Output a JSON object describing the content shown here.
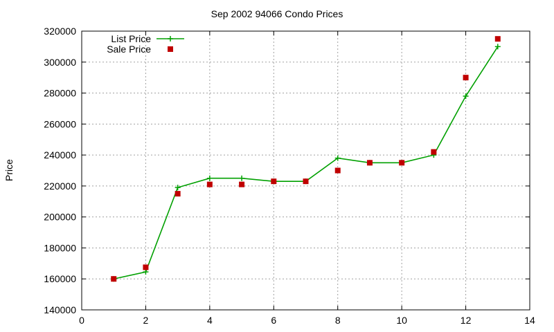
{
  "chart_data": {
    "type": "line",
    "title": "Sep 2002 94066 Condo Prices",
    "xlabel": "",
    "ylabel": "Price",
    "xlim": [
      0,
      14
    ],
    "ylim": [
      140000,
      320000
    ],
    "xticks": [
      0,
      2,
      4,
      6,
      8,
      10,
      12,
      14
    ],
    "yticks": [
      140000,
      160000,
      180000,
      200000,
      220000,
      240000,
      260000,
      280000,
      300000,
      320000
    ],
    "grid": true,
    "legend_position": "top-left",
    "series": [
      {
        "name": "List Price",
        "style": "line-plus",
        "color": "#00a000",
        "x": [
          1,
          2,
          3,
          4,
          5,
          6,
          7,
          8,
          9,
          10,
          11,
          12,
          13
        ],
        "y": [
          160000,
          164500,
          219000,
          225000,
          225000,
          223000,
          223000,
          238000,
          235000,
          235000,
          240000,
          278000,
          310000
        ]
      },
      {
        "name": "Sale Price",
        "style": "square-points",
        "color": "#c00000",
        "x": [
          1,
          2,
          3,
          4,
          5,
          6,
          7,
          8,
          9,
          10,
          11,
          12,
          13
        ],
        "y": [
          160000,
          167500,
          215000,
          221000,
          221000,
          223000,
          223000,
          230000,
          235000,
          235000,
          242000,
          290000,
          315000
        ]
      }
    ]
  }
}
